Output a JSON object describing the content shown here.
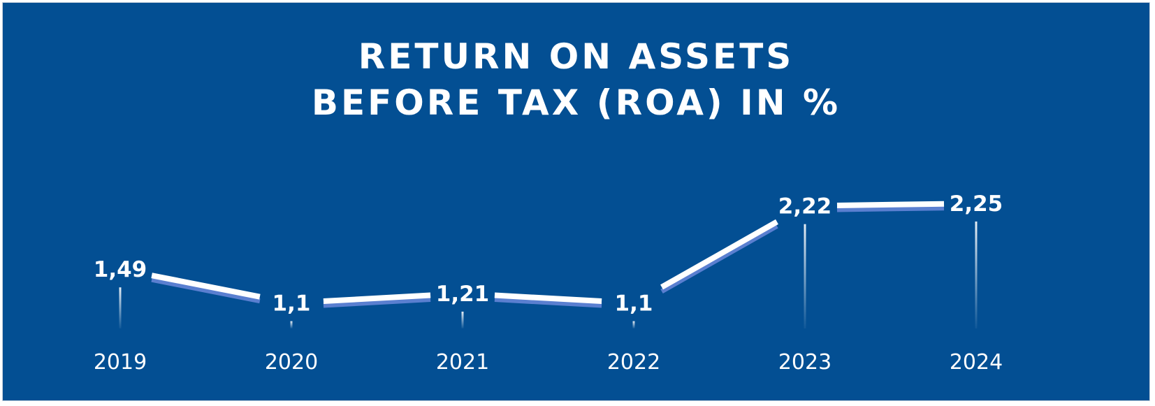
{
  "chart_data": {
    "type": "line",
    "title_lines": [
      "RETURN ON ASSETS",
      "BEFORE TAX (ROA) IN %"
    ],
    "categories": [
      "2019",
      "2020",
      "2021",
      "2022",
      "2023",
      "2024"
    ],
    "values": [
      1.49,
      1.1,
      1.21,
      1.1,
      2.22,
      2.25
    ],
    "data_labels": [
      "1,49",
      "1,1",
      "1,21",
      "1,1",
      "2,22",
      "2,25"
    ],
    "xlabel": "",
    "ylabel": "",
    "grid": false,
    "legend": "none",
    "colors": {
      "background": "#034f93",
      "line": "#ffffff",
      "line_shadow": "#5a7fd0",
      "drop_line": "#ffffff",
      "text": "#ffffff"
    }
  }
}
